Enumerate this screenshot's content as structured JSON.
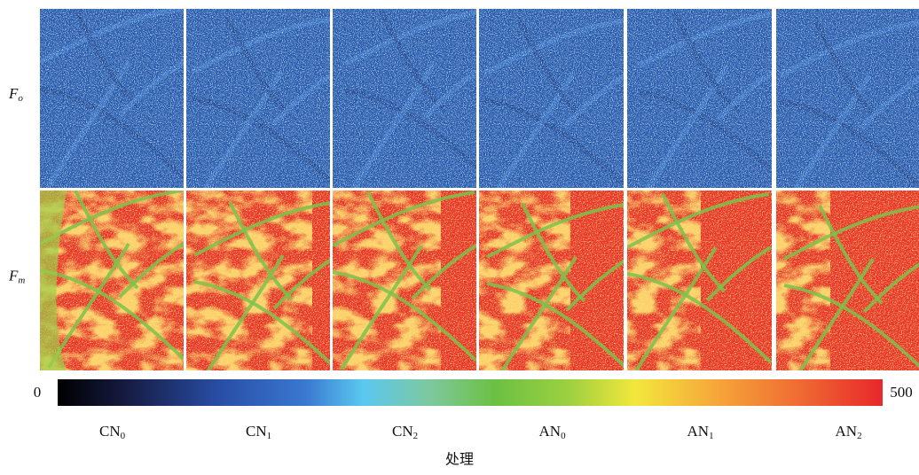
{
  "rows": [
    {
      "base": "F",
      "sub": "o"
    },
    {
      "base": "F",
      "sub": "m"
    }
  ],
  "colorbar": {
    "min": 0,
    "max": 500
  },
  "columns": [
    {
      "base": "CN",
      "sub": "0"
    },
    {
      "base": "CN",
      "sub": "1"
    },
    {
      "base": "CN",
      "sub": "2"
    },
    {
      "base": "AN",
      "sub": "0"
    },
    {
      "base": "AN",
      "sub": "1"
    },
    {
      "base": "AN",
      "sub": "2"
    }
  ],
  "x_label": "处理"
}
